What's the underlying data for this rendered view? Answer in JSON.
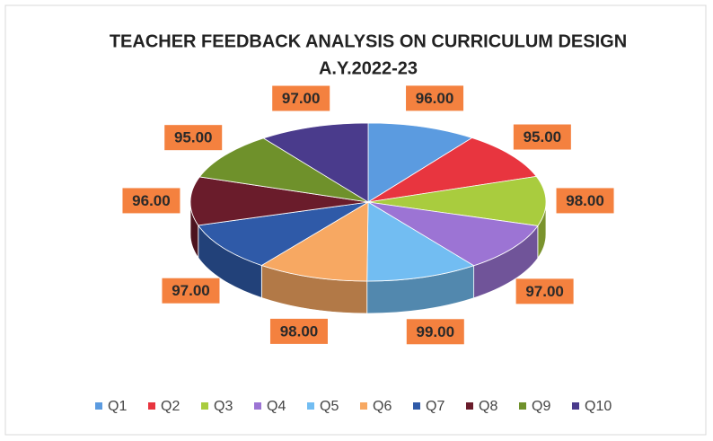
{
  "chart_data": {
    "type": "pie",
    "title": "TEACHER FEEDBACK ANALYSIS ON CURRICULUM DESIGN",
    "subtitle": "A.Y.2022-23",
    "categories": [
      "Q1",
      "Q2",
      "Q3",
      "Q4",
      "Q5",
      "Q6",
      "Q7",
      "Q8",
      "Q9",
      "Q10"
    ],
    "values": [
      96,
      95,
      98,
      97,
      99,
      98,
      97,
      96,
      95,
      97
    ],
    "value_labels": [
      "96.00",
      "95.00",
      "98.00",
      "97.00",
      "99.00",
      "98.00",
      "97.00",
      "96.00",
      "95.00",
      "97.00"
    ],
    "colors": [
      "#5b9be0",
      "#e8353f",
      "#a9cc3e",
      "#9c74d4",
      "#72bdf2",
      "#f7a862",
      "#2f5aa8",
      "#6a1c2b",
      "#6f912b",
      "#4a3b8c"
    ],
    "legend": "bottom"
  }
}
